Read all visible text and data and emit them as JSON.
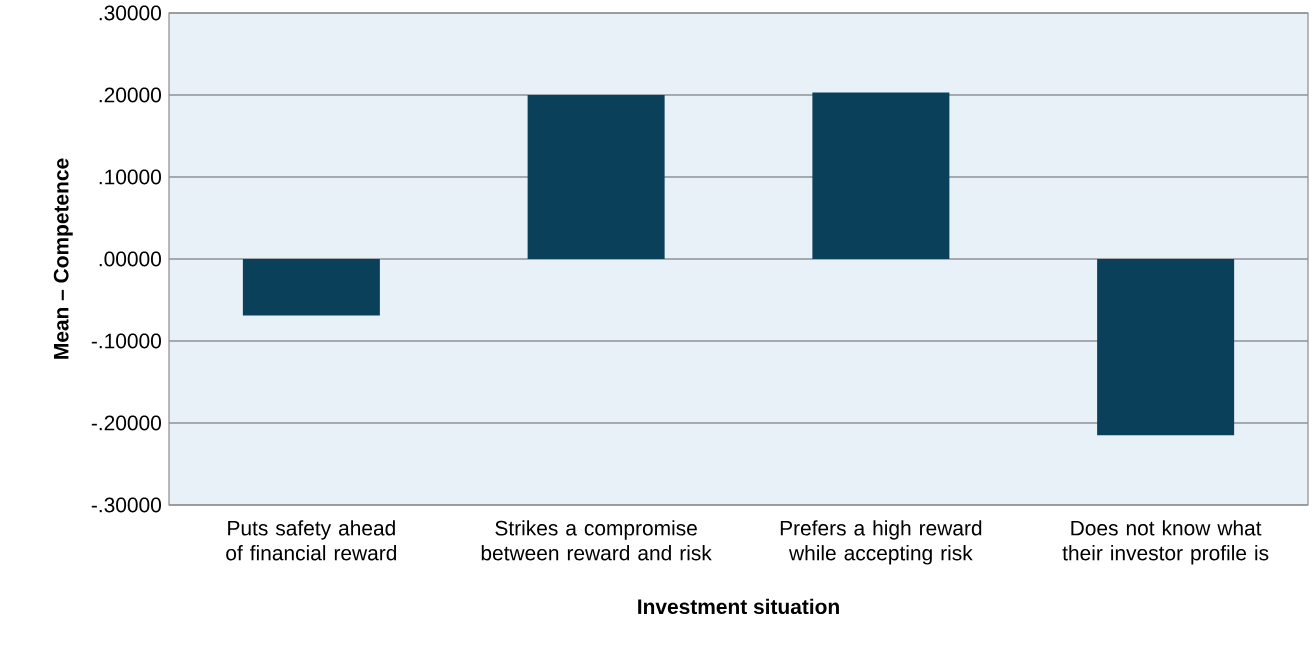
{
  "chart_data": {
    "type": "bar",
    "xlabel": "Investment situation",
    "ylabel": "Mean – Competence",
    "categories": [
      "Puts safety ahead of financial reward",
      "Strikes a compromise between reward and risk",
      "Prefers a high reward while accepting risk",
      "Does not know what their investor profile is"
    ],
    "values": [
      -0.069,
      0.2,
      0.203,
      -0.215
    ],
    "color": "#0a4059",
    "ylim": [
      -0.3,
      0.3
    ],
    "yticks": [
      {
        "value": -0.3,
        "label": "-.30000"
      },
      {
        "value": -0.2,
        "label": "-.20000"
      },
      {
        "value": -0.1,
        "label": "-.10000"
      },
      {
        "value": 0,
        "label": ".00000"
      },
      {
        "value": 0.1,
        "label": ".10000"
      },
      {
        "value": 0.2,
        "label": ".20000"
      },
      {
        "value": 0.3,
        "label": ".30000"
      }
    ],
    "grid": "y"
  }
}
